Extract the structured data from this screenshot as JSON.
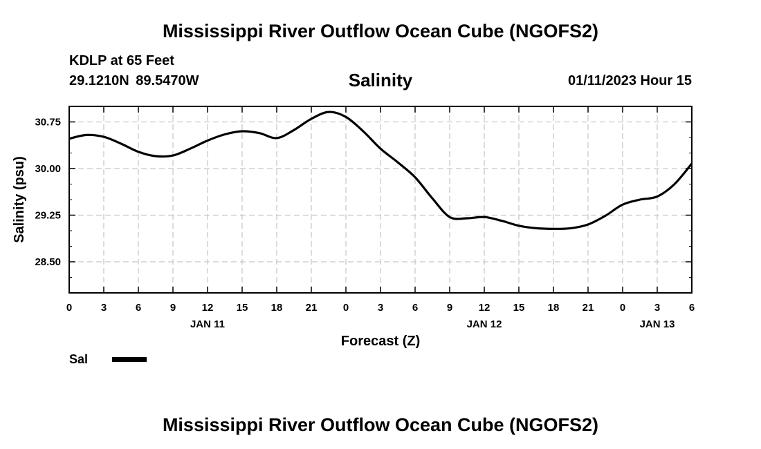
{
  "header": {
    "title": "Mississippi River Outflow Ocean Cube (NGOFS2)",
    "station": "KDLP at 65 Feet",
    "coords": "29.1210N  89.5470W",
    "chart_title": "Salinity",
    "datetime": "01/11/2023 Hour 15"
  },
  "legend": {
    "label": "Sal",
    "color": "#000000"
  },
  "footer": {
    "title": "Mississippi River Outflow Ocean Cube (NGOFS2)"
  },
  "chart_data": {
    "type": "line",
    "title": "Salinity",
    "xlabel": "Forecast (Z)",
    "ylabel": "Salinity (psu)",
    "xlim": [
      0,
      54
    ],
    "ylim": [
      28.0,
      31.0
    ],
    "x_ticks": [
      0,
      3,
      6,
      9,
      12,
      15,
      18,
      21,
      24,
      27,
      30,
      33,
      36,
      39,
      42,
      45,
      48,
      51,
      54
    ],
    "x_tick_labels": [
      "0",
      "3",
      "6",
      "9",
      "12",
      "15",
      "18",
      "21",
      "0",
      "3",
      "6",
      "9",
      "12",
      "15",
      "18",
      "21",
      "0",
      "3",
      "6"
    ],
    "date_labels": [
      {
        "x": 12,
        "label": "JAN 11"
      },
      {
        "x": 36,
        "label": "JAN 12"
      },
      {
        "x": 51,
        "label": "JAN 13"
      }
    ],
    "y_ticks": [
      28.5,
      29.25,
      30.0,
      30.75
    ],
    "y_tick_labels": [
      "28.50",
      "29.25",
      "30.00",
      "30.75"
    ],
    "grid": true,
    "series": [
      {
        "name": "Sal",
        "color": "#000000",
        "x": [
          0,
          1.5,
          3,
          4.5,
          6,
          7.5,
          9,
          10.5,
          12,
          13.5,
          15,
          16.5,
          18,
          19.5,
          21,
          22.5,
          24,
          25.5,
          27,
          28.5,
          30,
          31.5,
          33,
          34.5,
          36,
          37.5,
          39,
          40.5,
          42,
          43.5,
          45,
          46.5,
          48,
          49.5,
          51,
          52.5,
          54
        ],
        "values": [
          30.48,
          30.54,
          30.51,
          30.4,
          30.27,
          30.2,
          30.21,
          30.32,
          30.45,
          30.55,
          30.6,
          30.57,
          30.49,
          30.62,
          30.8,
          30.91,
          30.83,
          30.6,
          30.32,
          30.1,
          29.86,
          29.52,
          29.22,
          29.2,
          29.22,
          29.16,
          29.08,
          29.04,
          29.03,
          29.04,
          29.1,
          29.24,
          29.42,
          29.5,
          29.55,
          29.75,
          30.08
        ]
      }
    ]
  }
}
